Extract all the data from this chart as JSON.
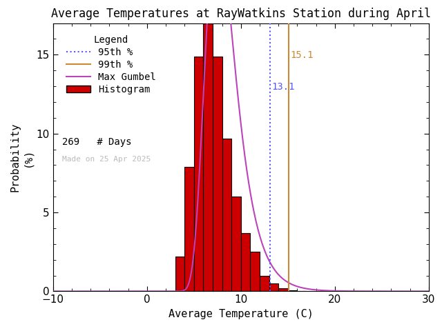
{
  "title": "Average Temperatures at RayWatkins Station during April",
  "xlabel": "Average Temperature (C)",
  "ylabel1": "Probability",
  "ylabel2": "(%)",
  "xlim": [
    -10,
    30
  ],
  "ylim": [
    0,
    17
  ],
  "yticks": [
    0,
    5,
    10,
    15
  ],
  "xticks": [
    -10,
    0,
    10,
    20,
    30
  ],
  "bin_edges": [
    3,
    4,
    5,
    6,
    7,
    8,
    9,
    10,
    11,
    12,
    13,
    14,
    15,
    16,
    17
  ],
  "bin_heights": [
    2.2,
    7.9,
    14.9,
    17.2,
    14.9,
    9.7,
    6.0,
    3.7,
    2.5,
    1.0,
    0.5,
    0.2,
    0.05,
    0.0
  ],
  "hist_color": "#cc0000",
  "hist_edgecolor": "#000000",
  "p95_value": 13.1,
  "p99_value": 15.1,
  "p95_color": "#5555ff",
  "p99_color": "#cc8833",
  "gumbel_color": "#bb44bb",
  "gumbel_mu": 7.5,
  "gumbel_beta": 1.6,
  "n_days": 269,
  "made_on": "Made on 25 Apr 2025",
  "background_color": "#ffffff",
  "title_fontsize": 12,
  "label_fontsize": 11,
  "tick_fontsize": 11,
  "legend_fontsize": 10
}
